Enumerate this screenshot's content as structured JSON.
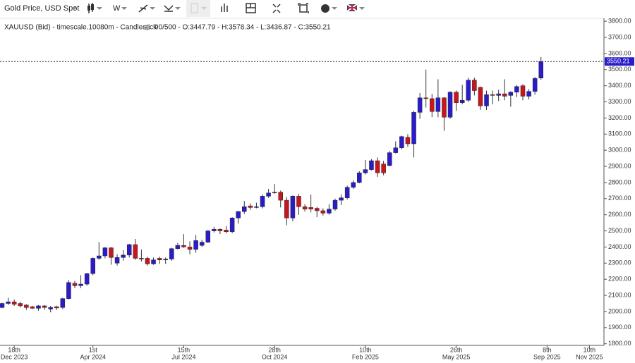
{
  "toolbar": {
    "instrument": "Gold Price, USD Spot",
    "period": "W"
  },
  "chart_data": {
    "type": "candlestick",
    "info": {
      "symbol": "XAUUSD (Bid) - timescale.10080m - Candlestick",
      "ohlc": "90/500 - O:3447.79 - H:3578.34 - L:3436.87 - C:3550.21"
    },
    "up_color": "#2a1ccc",
    "down_color": "#c8161e",
    "open": [
      2025,
      2050,
      2060,
      2050,
      2040,
      2030,
      2020,
      2035,
      2015,
      2030,
      2025,
      2080,
      2175,
      2160,
      2170,
      2235,
      2330,
      2345,
      2395,
      2300,
      2335,
      2350,
      2415,
      2330,
      2330,
      2295,
      2330,
      2320,
      2325,
      2390,
      2410,
      2400,
      2385,
      2410,
      2430,
      2500,
      2510,
      2505,
      2495,
      2580,
      2620,
      2655,
      2645,
      2650,
      2715,
      2740,
      2740,
      2690,
      2580,
      2715,
      2650,
      2645,
      2640,
      2625,
      2610,
      2635,
      2690,
      2705,
      2770,
      2800,
      2860,
      2880,
      2935,
      2915,
      2905,
      2985,
      3015,
      3080,
      3040,
      3235,
      3325,
      3320,
      3240,
      3325,
      3205,
      3360,
      3295,
      3310,
      3435,
      3390,
      3275,
      3345,
      3340,
      3350,
      3340,
      3360,
      3400,
      3335,
      3365,
      3447.79
    ],
    "high": [
      2055,
      2085,
      2075,
      2060,
      2045,
      2035,
      2040,
      2040,
      2035,
      2035,
      2085,
      2195,
      2190,
      2225,
      2240,
      2335,
      2430,
      2400,
      2400,
      2355,
      2380,
      2420,
      2450,
      2385,
      2340,
      2335,
      2340,
      2335,
      2395,
      2425,
      2480,
      2435,
      2475,
      2445,
      2505,
      2525,
      2515,
      2530,
      2585,
      2625,
      2685,
      2670,
      2675,
      2725,
      2760,
      2790,
      2750,
      2710,
      2720,
      2730,
      2665,
      2725,
      2650,
      2640,
      2665,
      2700,
      2725,
      2780,
      2815,
      2870,
      2940,
      2945,
      2955,
      2935,
      2995,
      3055,
      3090,
      3100,
      3245,
      3355,
      3500,
      3350,
      3440,
      3330,
      3365,
      3370,
      3405,
      3450,
      3450,
      3395,
      3370,
      3370,
      3375,
      3440,
      3365,
      3405,
      3410,
      3380,
      3455,
      3578.34
    ],
    "low": [
      2020,
      2040,
      2035,
      2025,
      2010,
      2015,
      2005,
      2010,
      1995,
      2010,
      2015,
      2075,
      2145,
      2145,
      2160,
      2225,
      2320,
      2330,
      2290,
      2285,
      2315,
      2335,
      2320,
      2310,
      2285,
      2290,
      2295,
      2295,
      2315,
      2385,
      2395,
      2355,
      2365,
      2400,
      2425,
      2490,
      2480,
      2485,
      2485,
      2545,
      2605,
      2630,
      2640,
      2640,
      2705,
      2730,
      2645,
      2535,
      2560,
      2600,
      2620,
      2615,
      2585,
      2595,
      2600,
      2625,
      2660,
      2695,
      2760,
      2795,
      2850,
      2875,
      2835,
      2845,
      2900,
      2980,
      3005,
      3020,
      2955,
      3195,
      3265,
      3205,
      3205,
      3120,
      3195,
      3245,
      3285,
      3300,
      3340,
      3250,
      3250,
      3285,
      3305,
      3310,
      3270,
      3330,
      3310,
      3315,
      3345,
      3436.87
    ],
    "close": [
      2050,
      2060,
      2045,
      2035,
      2025,
      2020,
      2035,
      2025,
      2025,
      2022,
      2080,
      2180,
      2160,
      2170,
      2235,
      2330,
      2345,
      2395,
      2335,
      2335,
      2350,
      2415,
      2330,
      2325,
      2295,
      2320,
      2320,
      2325,
      2390,
      2410,
      2400,
      2385,
      2440,
      2430,
      2500,
      2510,
      2500,
      2495,
      2580,
      2620,
      2650,
      2645,
      2650,
      2715,
      2735,
      2735,
      2690,
      2580,
      2715,
      2650,
      2635,
      2635,
      2625,
      2610,
      2635,
      2690,
      2705,
      2770,
      2800,
      2860,
      2880,
      2935,
      2860,
      2860,
      2985,
      3015,
      3085,
      3040,
      3235,
      3325,
      3320,
      3240,
      3325,
      3205,
      3360,
      3295,
      3310,
      3435,
      3370,
      3275,
      3345,
      3340,
      3350,
      3335,
      3360,
      3395,
      3335,
      3365,
      3445,
      3550.21
    ],
    "xlim": [
      -0.35,
      99.4
    ],
    "xticks": [
      {
        "value": 2,
        "label": [
          "18th",
          "Dec 2023"
        ]
      },
      {
        "value": 15,
        "label": [
          "1st",
          "Apr 2024"
        ]
      },
      {
        "value": 30,
        "label": [
          "15th",
          "Jul 2024"
        ]
      },
      {
        "value": 45,
        "label": [
          "28th",
          "Oct 2024"
        ]
      },
      {
        "value": 60,
        "label": [
          "10th",
          "Feb 2025"
        ]
      },
      {
        "value": 75,
        "label": [
          "26th",
          "May 2025"
        ]
      },
      {
        "value": 90,
        "label": [
          "8th",
          "Sep 2025"
        ]
      },
      {
        "value": 97,
        "label": [
          "10th",
          "Nov 2025"
        ]
      }
    ],
    "ylim": [
      1790,
      3818
    ],
    "yticks": [
      {
        "value": 1800,
        "label": "1800.00"
      },
      {
        "value": 1900,
        "label": "1900.00"
      },
      {
        "value": 2000,
        "label": "2000.00"
      },
      {
        "value": 2100,
        "label": "2100.00"
      },
      {
        "value": 2200,
        "label": "2200.00"
      },
      {
        "value": 2300,
        "label": "2300.00"
      },
      {
        "value": 2400,
        "label": "2400.00"
      },
      {
        "value": 2500,
        "label": "2500.00"
      },
      {
        "value": 2600,
        "label": "2600.00"
      },
      {
        "value": 2700,
        "label": "2700.00"
      },
      {
        "value": 2800,
        "label": "2800.00"
      },
      {
        "value": 2900,
        "label": "2900.00"
      },
      {
        "value": 3000,
        "label": "3000.00"
      },
      {
        "value": 3100,
        "label": "3100.00"
      },
      {
        "value": 3200,
        "label": "3200.00"
      },
      {
        "value": 3300,
        "label": "3300.00"
      },
      {
        "value": 3400,
        "label": "3400.00"
      },
      {
        "value": 3500,
        "label": "3500.00"
      },
      {
        "value": 3600,
        "label": "3600.00"
      },
      {
        "value": 3700,
        "label": "3700.00"
      },
      {
        "value": 3800,
        "label": "3800.00"
      }
    ],
    "grid": false
  }
}
